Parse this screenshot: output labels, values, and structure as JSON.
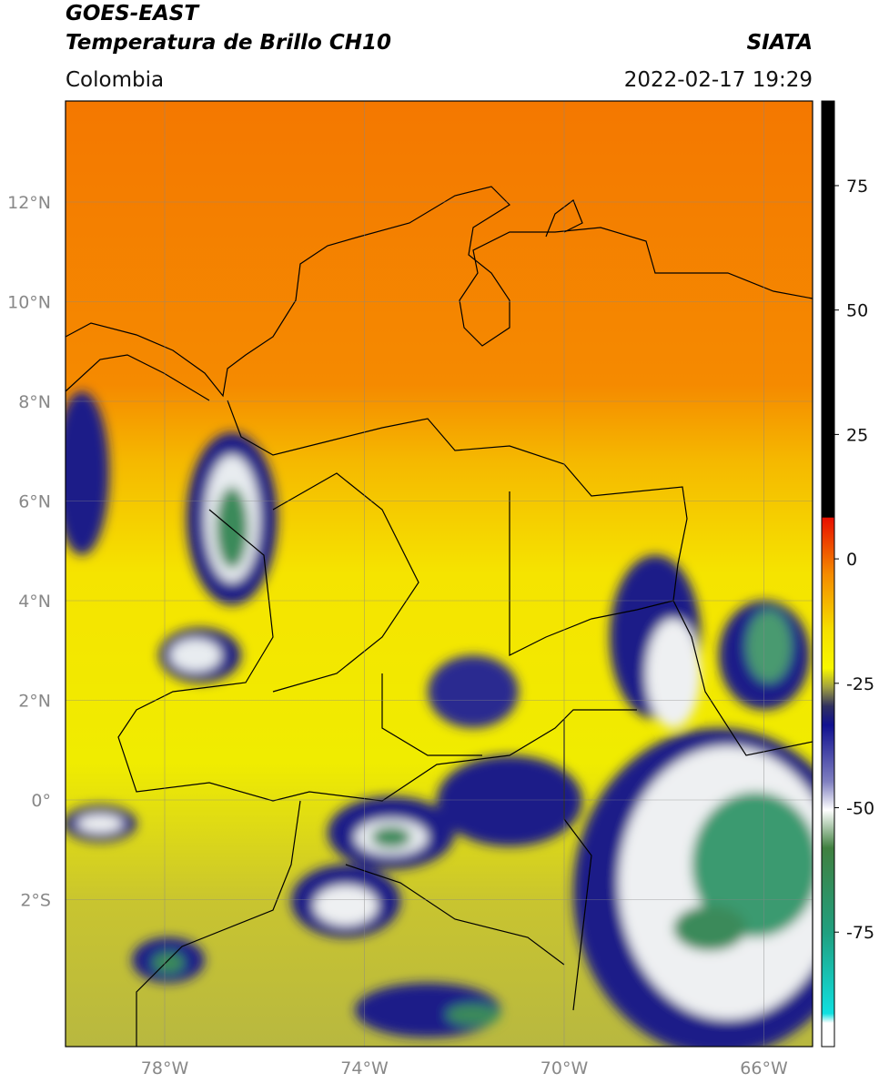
{
  "header": {
    "title": "GOES-EAST",
    "subtitle": "Temperatura de Brillo CH10",
    "source": "SIATA",
    "region": "Colombia",
    "datetime": "2022-02-17 19:29"
  },
  "map": {
    "lat_ticks": [
      "12°N",
      "10°N",
      "8°N",
      "6°N",
      "4°N",
      "2°N",
      "0°",
      "2°S"
    ],
    "lon_ticks": [
      "78°W",
      "74°W",
      "70°W",
      "66°W"
    ]
  },
  "colorbar": {
    "range": [
      -98,
      92
    ],
    "ticks": [
      75,
      50,
      25,
      0,
      -25,
      -50,
      -75
    ]
  }
}
